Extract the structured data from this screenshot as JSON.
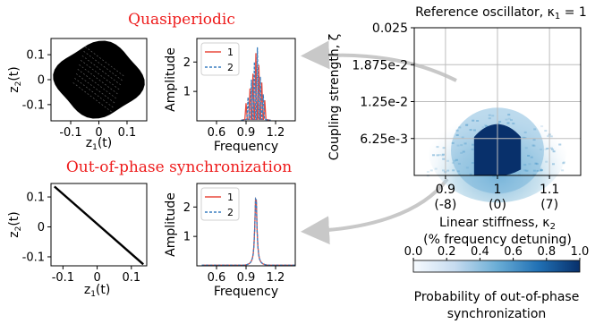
{
  "colors": {
    "title_red": "#ee1c1c",
    "series1": "#e8483c",
    "series2": "#3a7fc0",
    "heat_dark": "#08306b",
    "heat_light": "#f7fbff",
    "arrow": "#c8c8c8"
  },
  "titles": {
    "quasi": "Quasiperiodic",
    "oop": "Out-of-phase synchronization"
  },
  "chart_data": [
    {
      "id": "quasi-phase",
      "type": "scatter",
      "xlabel": "z1(t)",
      "ylabel": "z2(t)",
      "xlim": [
        -0.17,
        0.17
      ],
      "ylim": [
        -0.165,
        0.165
      ],
      "xticks": [
        "-0.1",
        "0",
        "0.1"
      ],
      "yticks": [
        "0.1",
        "0",
        "-0.1"
      ],
      "xtick_values": [
        -0.1,
        0,
        0.1
      ],
      "ytick_values": [
        0.1,
        0,
        -0.1
      ],
      "description": "filled torus trajectory spanning ~ -0.15 to 0.15 on both axes"
    },
    {
      "id": "quasi-spectrum",
      "type": "line",
      "xlabel": "Frequency",
      "ylabel": "Amplitude",
      "xlim": [
        0.4,
        1.4
      ],
      "ylim": [
        0,
        2.8
      ],
      "xticks": [
        "0.6",
        "0.9",
        "1.2"
      ],
      "yticks": [
        "1",
        "2"
      ],
      "xtick_values": [
        0.6,
        0.9,
        1.2
      ],
      "ytick_values": [
        1,
        2
      ],
      "legend": [
        "1",
        "2"
      ],
      "legend_loc": "upper-left",
      "series": [
        {
          "name": "1",
          "peaks_x": [
            0.9,
            0.94,
            0.97,
            1.0,
            1.03,
            1.06,
            1.09
          ],
          "peaks_y": [
            0.6,
            1.1,
            1.6,
            2.3,
            1.9,
            1.3,
            0.7
          ]
        },
        {
          "name": "2",
          "peaks_x": [
            0.92,
            0.955,
            0.985,
            1.015,
            1.045,
            1.075
          ],
          "peaks_y": [
            0.8,
            1.4,
            2.0,
            2.5,
            1.5,
            0.9
          ]
        }
      ]
    },
    {
      "id": "oop-phase",
      "type": "line",
      "xlabel": "z1(t)",
      "ylabel": "z2(t)",
      "xlim": [
        -0.135,
        0.145
      ],
      "ylim": [
        -0.13,
        0.145
      ],
      "xticks": [
        "-0.1",
        "0",
        "0.1"
      ],
      "yticks": [
        "0.1",
        "0",
        "-0.1"
      ],
      "xtick_values": [
        -0.1,
        0,
        0.1
      ],
      "ytick_values": [
        0.1,
        0,
        -0.1
      ],
      "x": [
        -0.125,
        0.135
      ],
      "y": [
        0.135,
        -0.125
      ]
    },
    {
      "id": "oop-spectrum",
      "type": "line",
      "xlabel": "Frequency",
      "ylabel": "Amplitude",
      "xlim": [
        0.4,
        1.4
      ],
      "ylim": [
        0,
        2.8
      ],
      "xticks": [
        "0.6",
        "0.9",
        "1.2"
      ],
      "yticks": [
        "1",
        "2"
      ],
      "xtick_values": [
        0.6,
        0.9,
        1.2
      ],
      "ytick_values": [
        1,
        2
      ],
      "legend": [
        "1",
        "2"
      ],
      "legend_loc": "upper-left",
      "series": [
        {
          "name": "1",
          "peak_x": 1.0,
          "peak_y": 2.5
        },
        {
          "name": "2",
          "peak_x": 1.0,
          "peak_y": 2.5
        }
      ]
    },
    {
      "id": "heatmap",
      "type": "heatmap",
      "title": "Reference oscillator, κ",
      "title_sub": "1",
      "title_tail": " = 1",
      "xlabel": "Linear stiffness, κ",
      "xlabel_sub": "2",
      "xlabel2": "(% frequency detuning)",
      "ylabel": "Coupling strength, ζ",
      "xlim": [
        0.84,
        1.16
      ],
      "ylim": [
        0,
        0.025
      ],
      "xticks": [
        {
          "top": "0.9",
          "bottom": "(-8)"
        },
        {
          "top": "1",
          "bottom": "(0)"
        },
        {
          "top": "1.1",
          "bottom": "(7)"
        }
      ],
      "xtick_values": [
        0.9,
        1.0,
        1.1
      ],
      "yticks": [
        "0.025",
        "1.875e-2",
        "1.25e-2",
        "6.25e-3"
      ],
      "ytick_values": [
        0.025,
        0.01875,
        0.0125,
        0.00625
      ],
      "colorbar": {
        "ticks": [
          "0.0",
          "0.2",
          "0.4",
          "0.6",
          "0.8",
          "1.0"
        ],
        "tick_values": [
          0,
          0.2,
          0.4,
          0.6,
          0.8,
          1.0
        ],
        "label_line1": "Probability of out-of-phase",
        "label_line2": "synchronization"
      }
    }
  ]
}
